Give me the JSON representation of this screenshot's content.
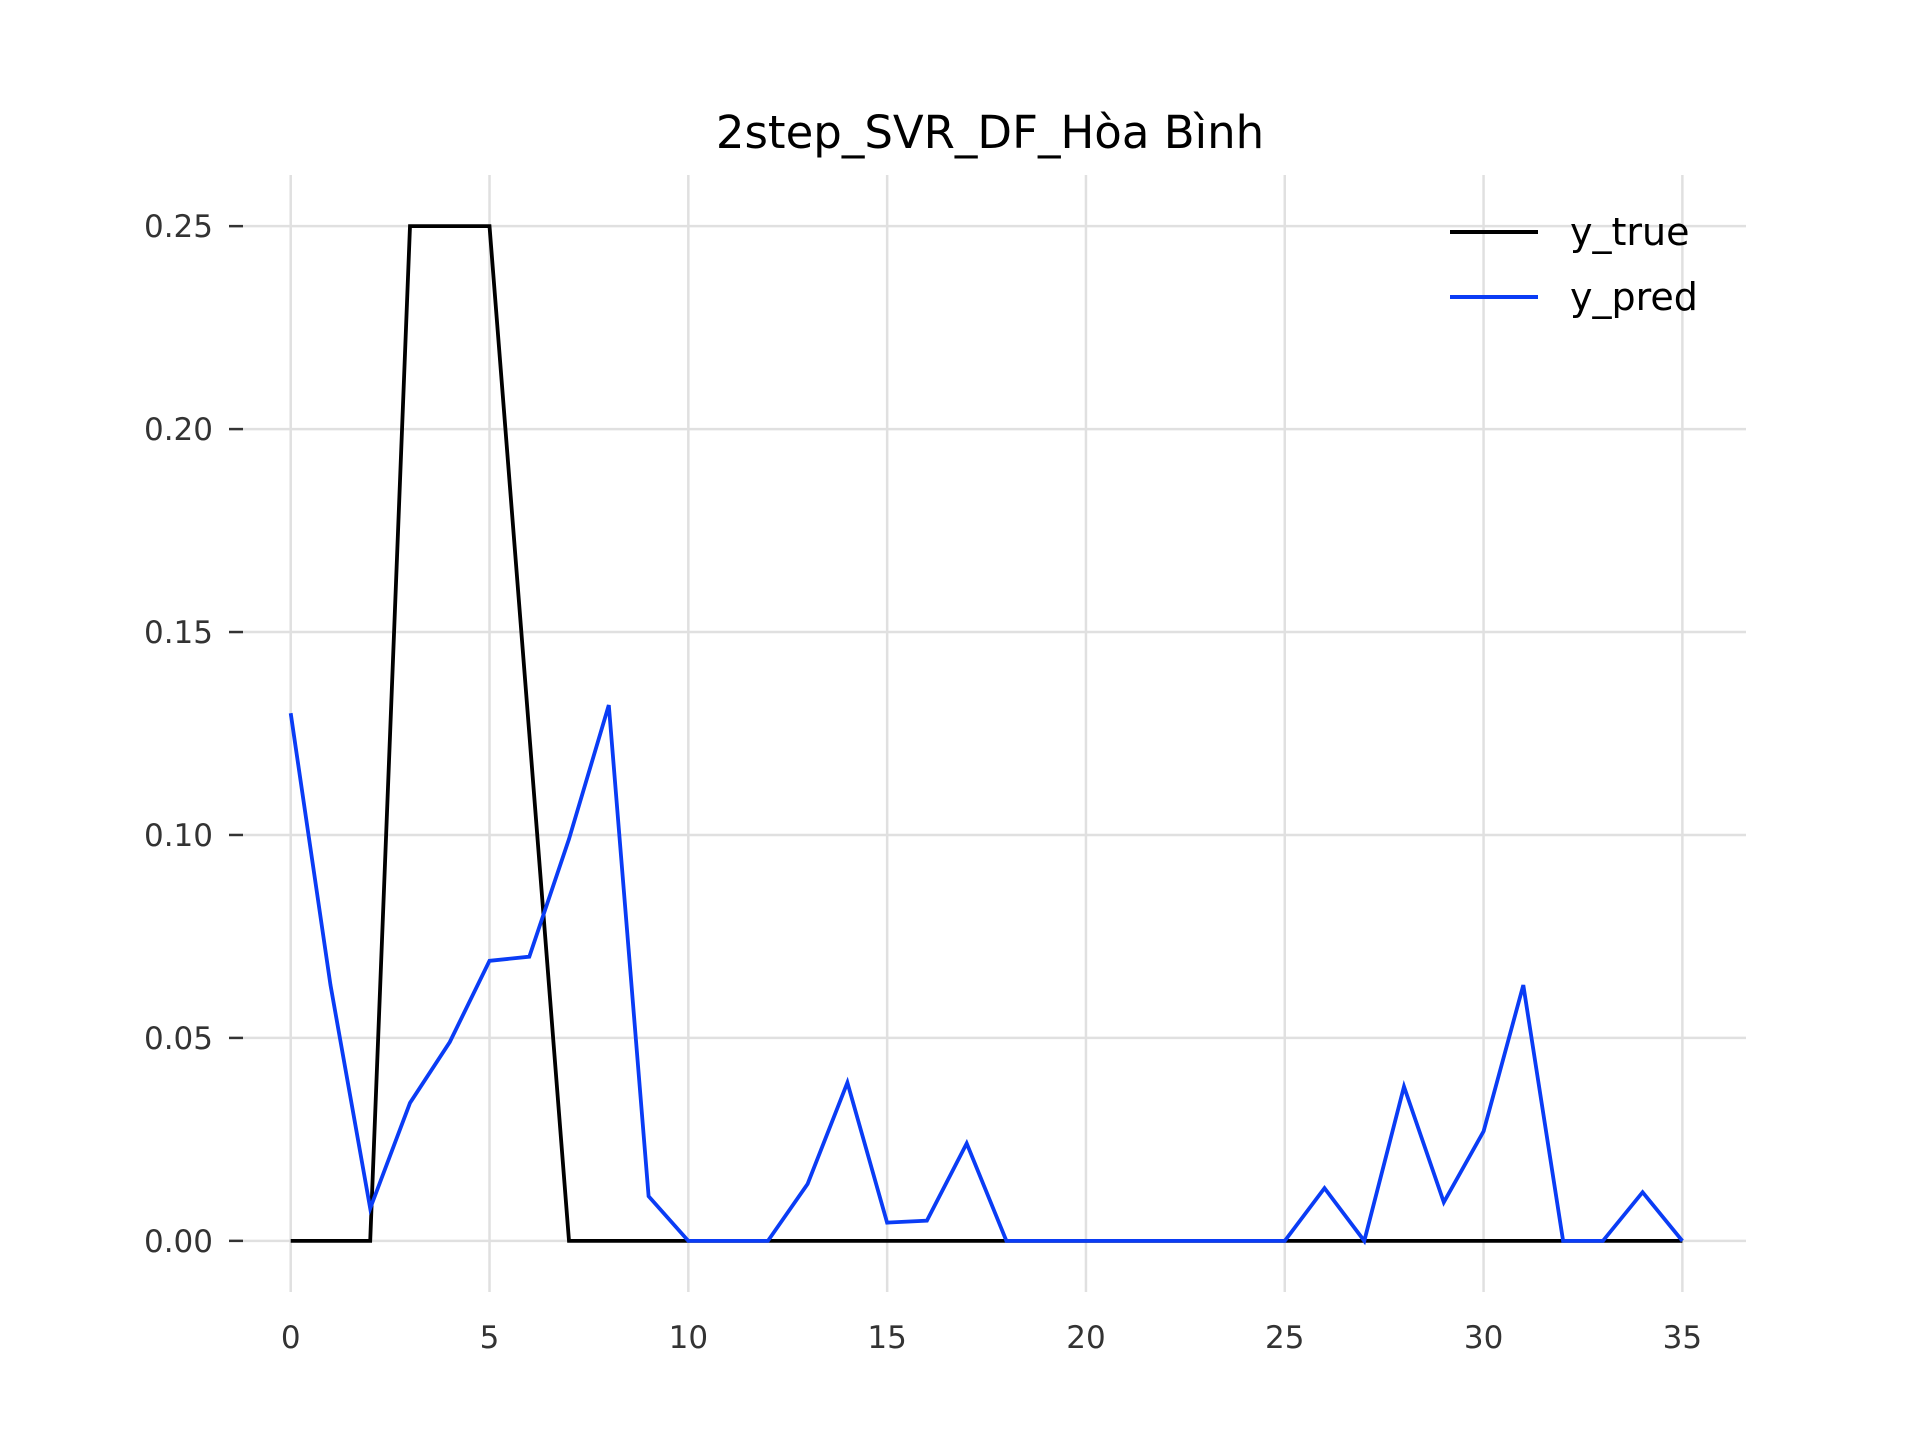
{
  "chart_data": {
    "type": "line",
    "title": "2step_SVR_DF_Hòa Bình",
    "xlabel": "",
    "ylabel": "",
    "xlim": [
      -1.2,
      36.6
    ],
    "ylim": [
      -0.0126,
      0.2626
    ],
    "xticks": [
      0,
      5,
      10,
      15,
      20,
      25,
      30,
      35
    ],
    "xtick_labels": [
      "0",
      "5",
      "10",
      "15",
      "20",
      "25",
      "30",
      "35"
    ],
    "yticks": [
      0.0,
      0.05,
      0.1,
      0.15,
      0.2,
      0.25
    ],
    "ytick_labels": [
      "0.00",
      "0.05",
      "0.10",
      "0.15",
      "0.20",
      "0.25"
    ],
    "grid": true,
    "legend_position": "top-right",
    "x": [
      0,
      1,
      2,
      3,
      4,
      5,
      6,
      7,
      8,
      9,
      10,
      11,
      12,
      13,
      14,
      15,
      16,
      17,
      18,
      19,
      20,
      21,
      22,
      23,
      24,
      25,
      26,
      27,
      28,
      29,
      30,
      31,
      32,
      33,
      34,
      35
    ],
    "series": [
      {
        "name": "y_true",
        "color": "#000000",
        "values": [
          0,
          0,
          0,
          0.25,
          0.25,
          0.25,
          0.125,
          0,
          0,
          0,
          0,
          0,
          0,
          0,
          0,
          0,
          0,
          0,
          0,
          0,
          0,
          0,
          0,
          0,
          0,
          0,
          0,
          0,
          0,
          0,
          0,
          0,
          0,
          0,
          0,
          0
        ]
      },
      {
        "name": "y_pred",
        "color": "#0a3cf5",
        "values": [
          0.13,
          0.063,
          0.008,
          0.034,
          0.049,
          0.069,
          0.07,
          0.099,
          0.132,
          0.011,
          0,
          0,
          0,
          0.014,
          0.039,
          0.0045,
          0.005,
          0.024,
          0,
          0,
          0,
          0,
          0,
          0,
          0,
          0,
          0.013,
          0,
          0.038,
          0.0095,
          0.027,
          0.063,
          0,
          0,
          0.012,
          0
        ]
      }
    ]
  }
}
